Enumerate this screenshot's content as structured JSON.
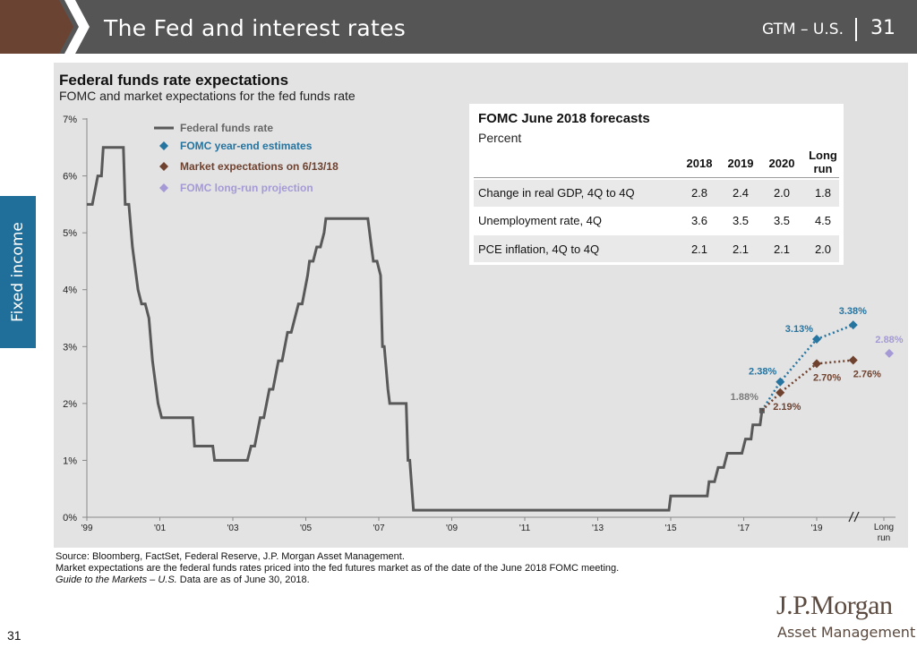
{
  "header": {
    "title": "The Fed and interest rates",
    "series_label": "GTM – U.S.",
    "page": "31"
  },
  "side_tab": "Fixed income",
  "chart_title": "Federal funds rate expectations",
  "chart_subtitle": "FOMC and market expectations for the fed funds rate",
  "colors": {
    "funds": "#595959",
    "fomc": "#2674a0",
    "market": "#6f4230",
    "longrun": "#a59ad6",
    "header_bg": "#555555",
    "header_accent": "#6b4332",
    "side_tab": "#1f6f9a",
    "panel": "#e3e3e3"
  },
  "legend": [
    {
      "label": "Federal funds rate",
      "color": "#595959",
      "marker": "line"
    },
    {
      "label": "FOMC year-end estimates",
      "color": "#2674a0",
      "marker": "diamond"
    },
    {
      "label": "Market expectations on 6/13/18",
      "color": "#6f4230",
      "marker": "diamond"
    },
    {
      "label": "FOMC long-run projection",
      "color": "#a59ad6",
      "marker": "diamond"
    }
  ],
  "chart_data": {
    "type": "line",
    "ylim": [
      0,
      7
    ],
    "y_ticks": [
      "0%",
      "1%",
      "2%",
      "3%",
      "4%",
      "5%",
      "6%",
      "7%"
    ],
    "x_ticks": [
      "'99",
      "'01",
      "'03",
      "'05",
      "'07",
      "'09",
      "'11",
      "'13",
      "'15",
      "'17",
      "'19",
      "Long run"
    ],
    "grid": false,
    "legend_position": "top-left",
    "series": [
      {
        "name": "Federal funds rate",
        "points": [
          [
            1999.0,
            5.5
          ],
          [
            1999.15,
            5.5
          ],
          [
            1999.3,
            6.0
          ],
          [
            1999.4,
            6.0
          ],
          [
            1999.45,
            6.5
          ],
          [
            1999.7,
            6.5
          ],
          [
            2000.0,
            6.5
          ],
          [
            2000.05,
            5.5
          ],
          [
            2000.15,
            5.5
          ],
          [
            2000.25,
            4.75
          ],
          [
            2000.4,
            4.0
          ],
          [
            2000.5,
            3.75
          ],
          [
            2000.6,
            3.75
          ],
          [
            2000.7,
            3.5
          ],
          [
            2000.8,
            2.75
          ],
          [
            2000.95,
            2.0
          ],
          [
            2001.05,
            1.75
          ],
          [
            2001.9,
            1.75
          ],
          [
            2001.95,
            1.25
          ],
          [
            2002.45,
            1.25
          ],
          [
            2002.5,
            1.0
          ],
          [
            2003.4,
            1.0
          ],
          [
            2003.5,
            1.25
          ],
          [
            2003.6,
            1.25
          ],
          [
            2003.75,
            1.75
          ],
          [
            2003.85,
            1.75
          ],
          [
            2004.0,
            2.25
          ],
          [
            2004.1,
            2.25
          ],
          [
            2004.25,
            2.75
          ],
          [
            2004.35,
            2.75
          ],
          [
            2004.5,
            3.25
          ],
          [
            2004.6,
            3.25
          ],
          [
            2004.8,
            3.75
          ],
          [
            2004.9,
            3.75
          ],
          [
            2005.05,
            4.25
          ],
          [
            2005.1,
            4.5
          ],
          [
            2005.2,
            4.5
          ],
          [
            2005.3,
            4.75
          ],
          [
            2005.4,
            4.75
          ],
          [
            2005.5,
            5.0
          ],
          [
            2005.55,
            5.25
          ],
          [
            2006.7,
            5.25
          ],
          [
            2006.8,
            4.75
          ],
          [
            2006.85,
            4.5
          ],
          [
            2006.95,
            4.5
          ],
          [
            2007.05,
            4.25
          ],
          [
            2007.1,
            3.0
          ],
          [
            2007.15,
            3.0
          ],
          [
            2007.25,
            2.25
          ],
          [
            2007.3,
            2.0
          ],
          [
            2007.75,
            2.0
          ],
          [
            2007.8,
            1.0
          ],
          [
            2007.85,
            1.0
          ],
          [
            2007.95,
            0.125
          ],
          [
            2014.95,
            0.125
          ],
          [
            2015.0,
            0.375
          ],
          [
            2016.0,
            0.375
          ],
          [
            2016.05,
            0.625
          ],
          [
            2016.2,
            0.625
          ],
          [
            2016.3,
            0.875
          ],
          [
            2016.45,
            0.875
          ],
          [
            2016.55,
            1.125
          ],
          [
            2016.95,
            1.125
          ],
          [
            2017.05,
            1.375
          ],
          [
            2017.2,
            1.375
          ],
          [
            2017.25,
            1.625
          ],
          [
            2017.45,
            1.625
          ],
          [
            2017.5,
            1.875
          ]
        ]
      },
      {
        "name": "FOMC year-end estimates",
        "x": [
          "2018",
          "2019",
          "2020"
        ],
        "values": [
          2.38,
          3.13,
          3.38
        ],
        "labels": [
          "2.38%",
          "3.13%",
          "3.38%"
        ]
      },
      {
        "name": "Market expectations on 6/13/18",
        "x": [
          "2018",
          "2019",
          "2020"
        ],
        "values": [
          2.19,
          2.7,
          2.76
        ],
        "labels": [
          "2.19%",
          "2.70%",
          "2.76%"
        ]
      },
      {
        "name": "FOMC long-run projection",
        "x": [
          "Long run"
        ],
        "values": [
          2.88
        ],
        "labels": [
          "2.88%"
        ]
      }
    ],
    "current_rate": {
      "value": 1.88,
      "label": "1.88%"
    }
  },
  "forecast_table": {
    "title": "FOMC June 2018 forecasts",
    "unit": "Percent",
    "columns": [
      "2018",
      "2019",
      "2020",
      "Long run"
    ],
    "rows": [
      {
        "label": "Change in real GDP, 4Q to 4Q",
        "values": [
          "2.8",
          "2.4",
          "2.0",
          "1.8"
        ]
      },
      {
        "label": "Unemployment rate, 4Q",
        "values": [
          "3.6",
          "3.5",
          "3.5",
          "4.5"
        ]
      },
      {
        "label": "PCE inflation, 4Q to 4Q",
        "values": [
          "2.1",
          "2.1",
          "2.1",
          "2.0"
        ]
      }
    ]
  },
  "footnotes": {
    "source": "Source: Bloomberg, FactSet, Federal Reserve, J.P. Morgan Asset Management.",
    "note": "Market expectations are the federal funds rates priced into the fed futures market as of the date of the June 2018 FOMC meeting.",
    "guide_italic": "Guide to the Markets – U.S.",
    "guide_rest": " Data are as of June 30, 2018."
  },
  "page_number": "31",
  "logo": {
    "line1": "J.P.Morgan",
    "line2": "Asset Management"
  }
}
